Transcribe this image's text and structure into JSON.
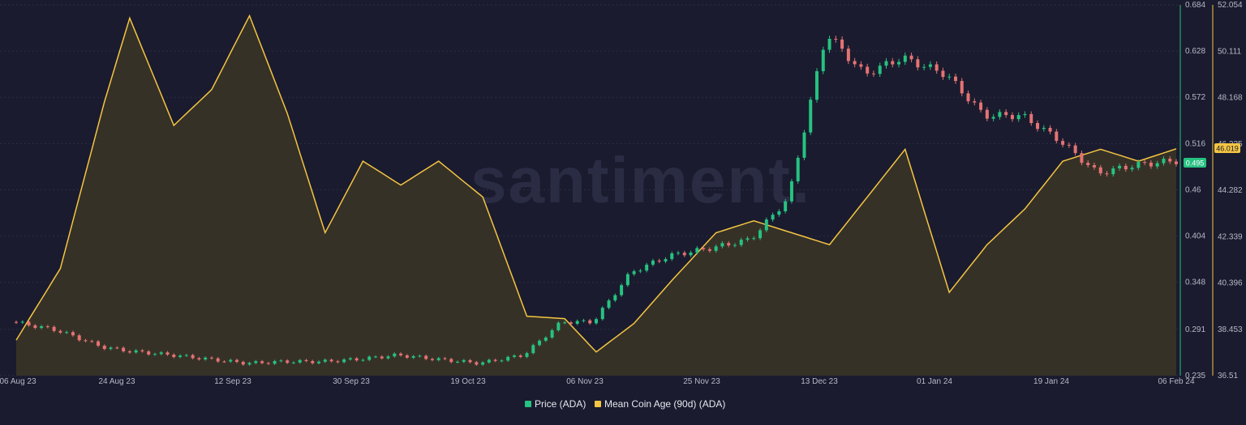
{
  "colors": {
    "background": "#1a1b2e",
    "grid": "#2b2d44",
    "price_up": "#26c281",
    "price_down": "#e57373",
    "coin_age_line": "#f4c542",
    "coin_age_fill": "#3a3427",
    "price_axis": "#26c281",
    "coin_age_axis": "#f4c542"
  },
  "watermark": "santiment.",
  "legend": {
    "price": "Price (ADA)",
    "coin_age": "Mean Coin Age (90d) (ADA)"
  },
  "badges": {
    "price": "0.495",
    "coin_age": "46.019"
  },
  "chart_data": {
    "type": "line",
    "x_labels": [
      "06 Aug 23",
      "24 Aug 23",
      "12 Sep 23",
      "30 Sep 23",
      "19 Oct 23",
      "06 Nov 23",
      "25 Nov 23",
      "13 Dec 23",
      "01 Jan 24",
      "19 Jan 24",
      "06 Feb 24"
    ],
    "price_axis": {
      "ticks": [
        "0.684",
        "0.628",
        "0.572",
        "0.516",
        "0.46",
        "0.404",
        "0.348",
        "0.291",
        "0.235"
      ],
      "ylim": [
        0.235,
        0.684
      ]
    },
    "coin_age_axis": {
      "ticks": [
        "52.054",
        "50.111",
        "48.168",
        "46.225",
        "44.282",
        "42.339",
        "40.396",
        "38.453",
        "36.51"
      ],
      "ylim": [
        36.51,
        52.054
      ]
    },
    "x": [
      "2023-08-06",
      "2023-08-13",
      "2023-08-20",
      "2023-08-24",
      "2023-08-31",
      "2023-09-06",
      "2023-09-12",
      "2023-09-18",
      "2023-09-24",
      "2023-09-30",
      "2023-10-06",
      "2023-10-12",
      "2023-10-19",
      "2023-10-26",
      "2023-11-01",
      "2023-11-06",
      "2023-11-12",
      "2023-11-18",
      "2023-11-25",
      "2023-12-01",
      "2023-12-07",
      "2023-12-13",
      "2023-12-19",
      "2023-12-25",
      "2024-01-01",
      "2024-01-07",
      "2024-01-13",
      "2024-01-19",
      "2024-01-25",
      "2024-01-31",
      "2024-02-06"
    ],
    "series": [
      {
        "name": "Price (ADA)",
        "axis": "left",
        "values": [
          0.3,
          0.29,
          0.27,
          0.265,
          0.26,
          0.255,
          0.25,
          0.252,
          0.252,
          0.255,
          0.26,
          0.255,
          0.25,
          0.26,
          0.3,
          0.3,
          0.36,
          0.38,
          0.39,
          0.4,
          0.45,
          0.65,
          0.6,
          0.62,
          0.6,
          0.55,
          0.55,
          0.52,
          0.48,
          0.49,
          0.495
        ]
      },
      {
        "name": "Mean Coin Age (90d) (ADA)",
        "axis": "right",
        "values": [
          38.0,
          41.0,
          48.0,
          51.5,
          47.0,
          48.5,
          51.6,
          47.5,
          42.5,
          45.5,
          44.5,
          45.5,
          44.0,
          39.0,
          38.9,
          37.5,
          38.7,
          40.5,
          42.5,
          43.0,
          42.5,
          42.0,
          44.0,
          46.0,
          40.0,
          42.0,
          43.5,
          45.5,
          46.0,
          45.5,
          46.019
        ]
      }
    ],
    "legend_position": "bottom-center",
    "grid": true
  }
}
